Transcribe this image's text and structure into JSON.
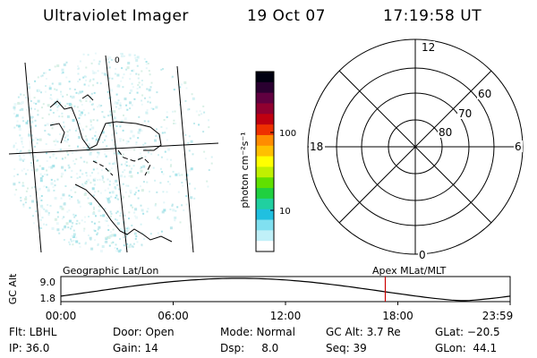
{
  "header": {
    "title": "Ultraviolet Imager",
    "date": "19 Oct 07",
    "time": "17:19:58 UT"
  },
  "image_panel": {
    "grid_label": "0"
  },
  "colorbar": {
    "unit_label": "photon cm⁻²s⁻¹",
    "ticks": [
      "100",
      "10"
    ],
    "colors": [
      "#000010",
      "#2a0030",
      "#600040",
      "#900030",
      "#c00010",
      "#ee3000",
      "#ff8c00",
      "#ffc000",
      "#ffff00",
      "#c0f000",
      "#60e000",
      "#20d040",
      "#20d0a0",
      "#20c0e0",
      "#80e0f0",
      "#c0f0f8",
      "#ffffff"
    ]
  },
  "polar_panel": {
    "mlt_labels": {
      "top": "12",
      "bottom": "0",
      "left": "18",
      "right": "6"
    },
    "lat_labels": [
      "60",
      "70",
      "80"
    ]
  },
  "alt_plot": {
    "ylabel": "GC Alt",
    "yticks": [
      "9.0",
      "1.8"
    ],
    "left_title": "Geographic Lat/Lon",
    "right_title": "Apex MLat/MLT",
    "xticks": [
      "00:00",
      "06:00",
      "12:00",
      "18:00",
      "23:59"
    ],
    "marker_time_hours": 17.33,
    "marker_color": "#cc0000"
  },
  "info": {
    "flt": "Flt: LBHL",
    "ip": "IP: 36.0",
    "door": "Door: Open",
    "gain": "Gain: 14",
    "mode": "Mode: Normal",
    "dsp": "Dsp:     8.0",
    "gcalt": "GC Alt: 3.7 Re",
    "seq": "Seq: 39",
    "glat": "GLat: −20.5",
    "glon": "GLon:  44.1"
  }
}
